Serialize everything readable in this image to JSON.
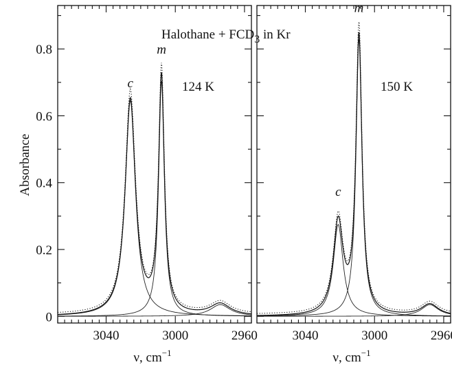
{
  "figure": {
    "title": "Halothane + FCD",
    "title_sub": "3",
    "title_suffix": " in Kr",
    "ylabel": "Absorbance",
    "xlabel": "ν, cm",
    "xlabel_sup": "−1"
  },
  "chart_data": [
    {
      "type": "line",
      "panel_label": "124 K",
      "xlim": [
        3068,
        2956
      ],
      "ylim": [
        -0.02,
        0.93
      ],
      "xticks": [
        3040,
        3000,
        2960
      ],
      "xtick_labels": [
        "3040",
        "3000",
        "2960"
      ],
      "yticks": [
        0,
        0.2,
        0.4,
        0.6,
        0.8
      ],
      "ytick_labels": [
        "0",
        "0.2",
        "0.4",
        "0.6",
        "0.8"
      ],
      "peaks": [
        {
          "label": "c",
          "center": 3026,
          "height": 0.645,
          "width": 3.6
        },
        {
          "label": "m",
          "center": 3008,
          "height": 0.705,
          "width": 2.0
        },
        {
          "label": "",
          "center": 2974,
          "height": 0.035,
          "width": 7.0
        }
      ],
      "peak_maxima": [
        {
          "label": "c",
          "x": 3026,
          "y": 0.665
        },
        {
          "label": "m",
          "x": 3008,
          "y": 0.765
        },
        {
          "label": "",
          "x": 2974,
          "y": 0.04
        }
      ]
    },
    {
      "type": "line",
      "panel_label": "150 K",
      "xlim": [
        3068,
        2956
      ],
      "ylim": [
        -0.02,
        0.93
      ],
      "xticks": [
        3040,
        3000,
        2960
      ],
      "xtick_labels": [
        "3040",
        "3000",
        "2960"
      ],
      "yticks": [
        0,
        0.2,
        0.4,
        0.6,
        0.8
      ],
      "ytick_labels": [
        "",
        "",
        "",
        "",
        ""
      ],
      "peaks": [
        {
          "label": "c",
          "center": 3021,
          "height": 0.275,
          "width": 3.4
        },
        {
          "label": "m",
          "center": 3009,
          "height": 0.83,
          "width": 2.1
        },
        {
          "label": "",
          "center": 2968,
          "height": 0.035,
          "width": 6.0
        }
      ],
      "peak_maxima": [
        {
          "label": "c",
          "x": 3021,
          "y": 0.34
        },
        {
          "label": "m",
          "x": 3009,
          "y": 0.89
        },
        {
          "label": "",
          "x": 2968,
          "y": 0.04
        }
      ]
    }
  ]
}
